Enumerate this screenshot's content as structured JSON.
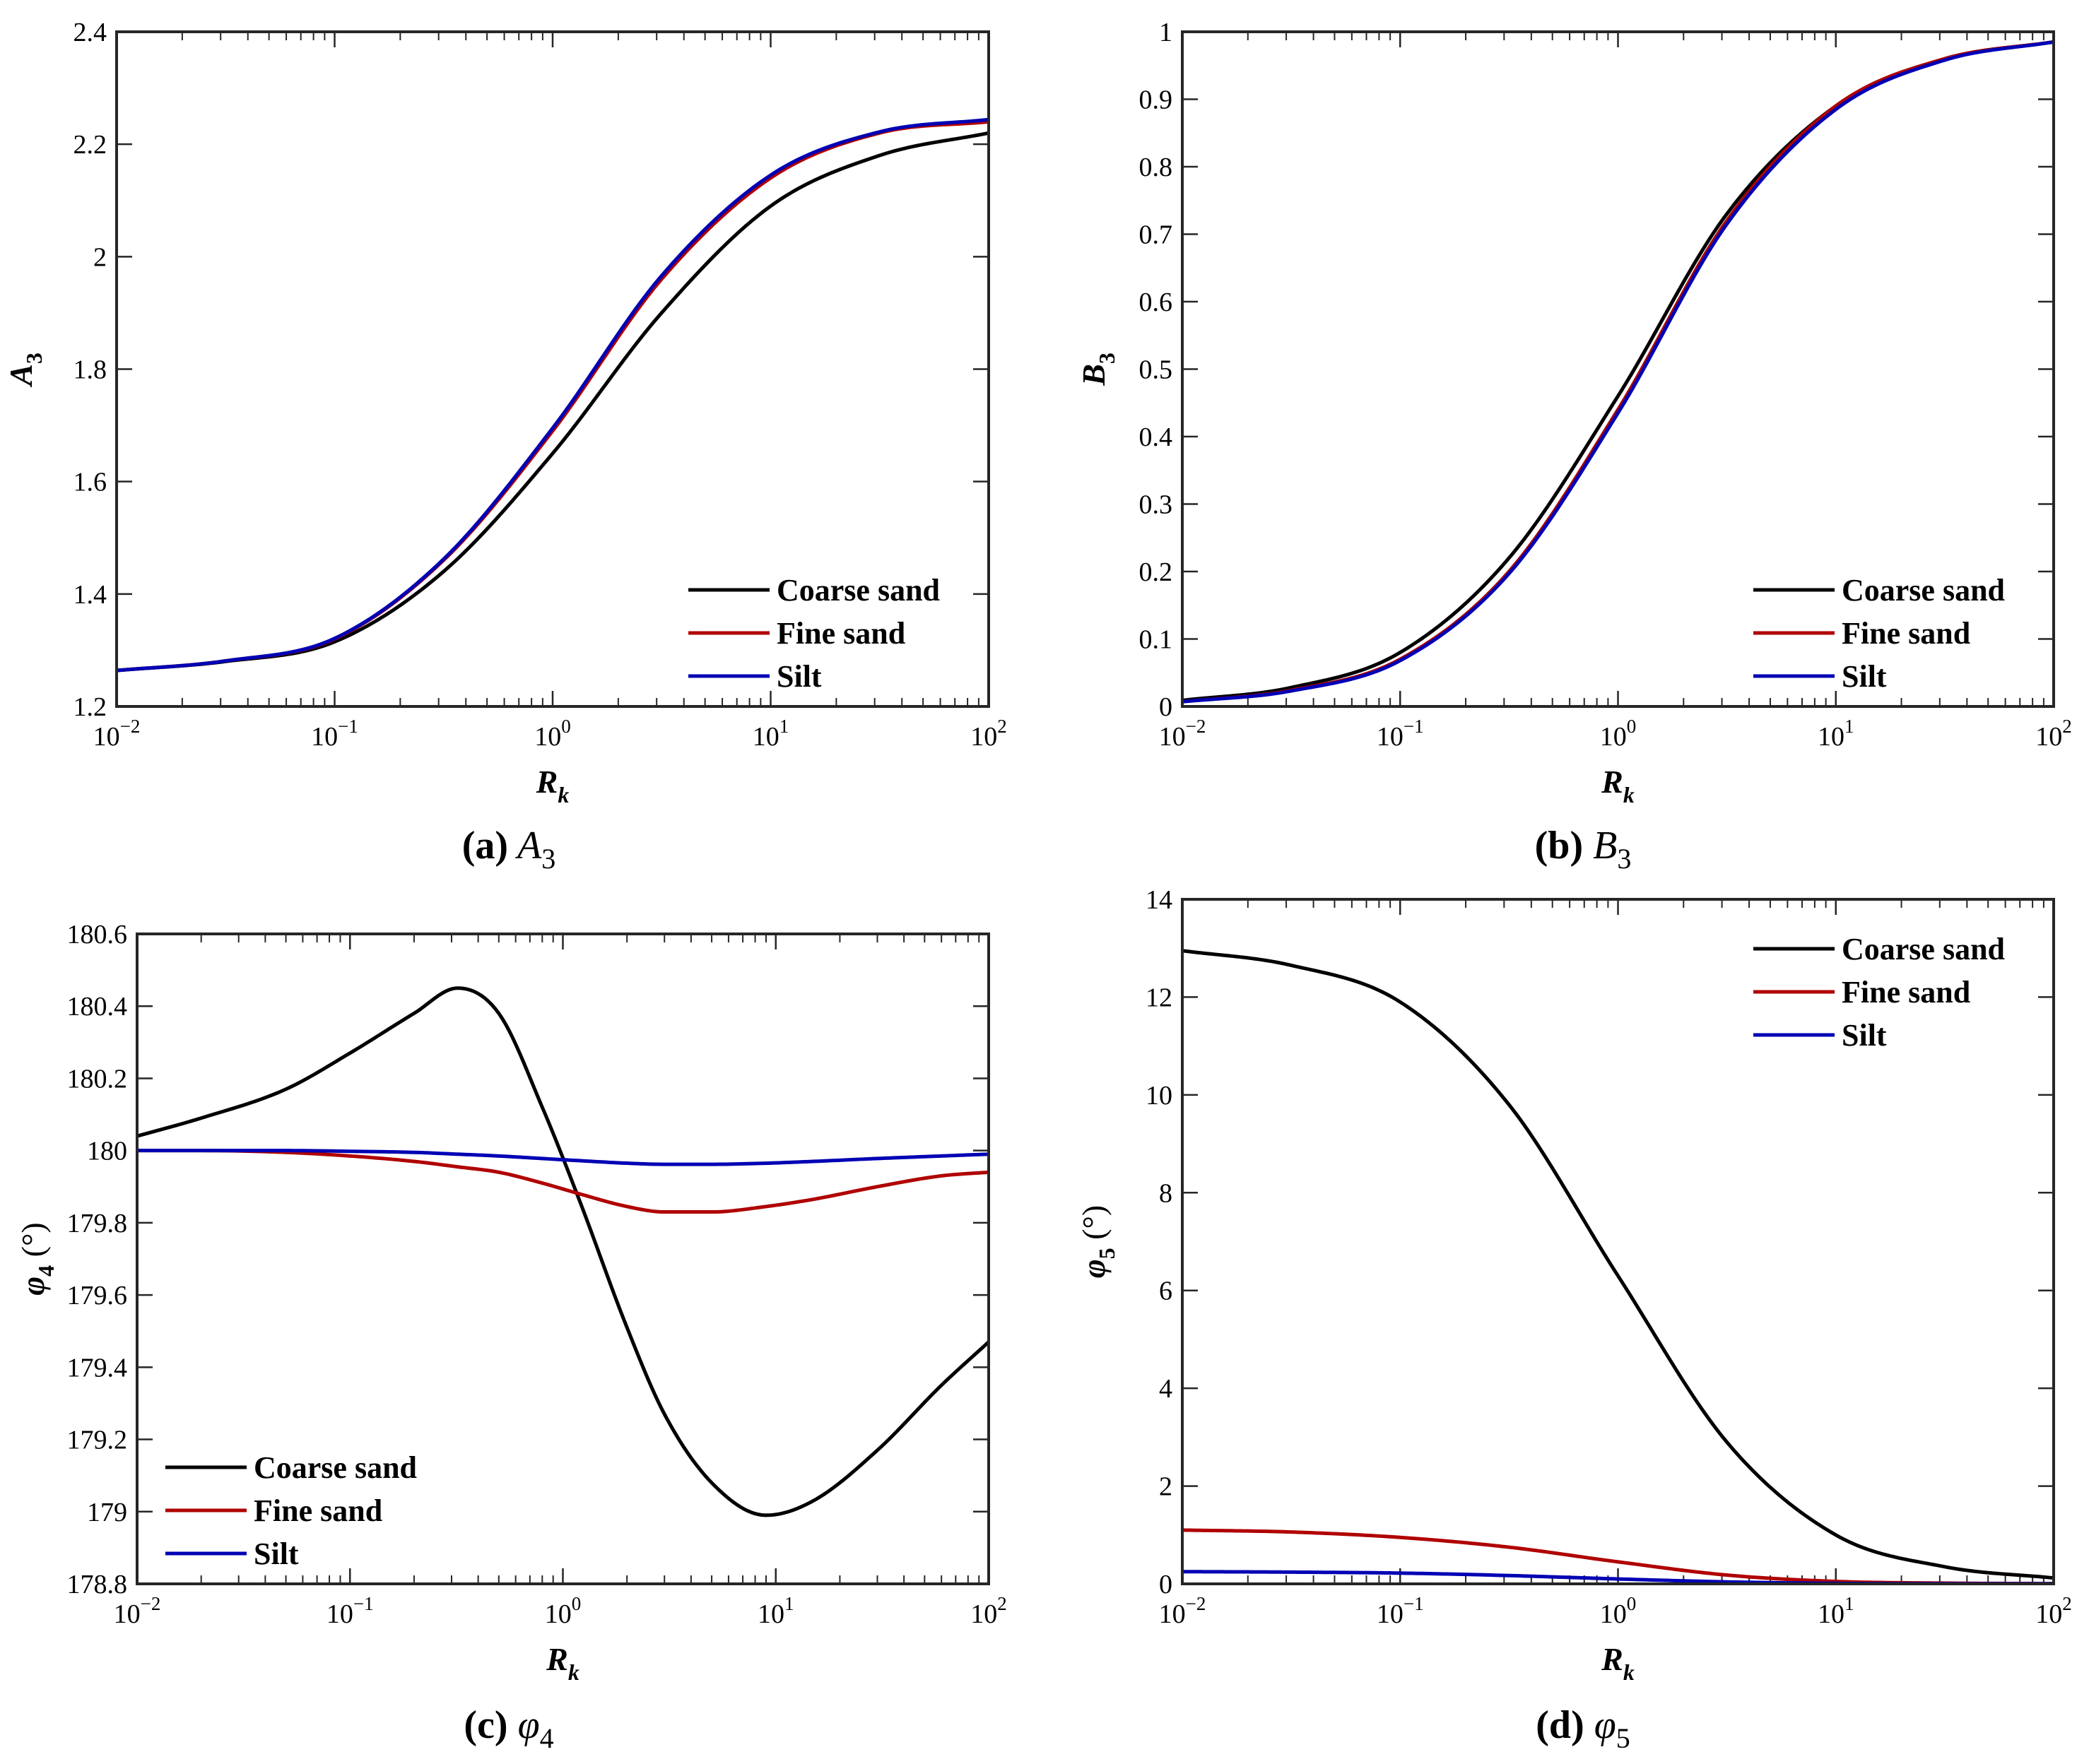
{
  "figure": {
    "colors": {
      "coarse": "#000000",
      "fine": "#b00000",
      "silt": "#0000b4",
      "axis": "#262626"
    }
  },
  "chart_data": [
    {
      "id": "a",
      "type": "line",
      "caption": {
        "letter": "(a)",
        "symbol": "A",
        "sub": "3"
      },
      "ylabel": {
        "symbol": "A",
        "sub": "3",
        "unit": ""
      },
      "xlabel": {
        "symbol": "R",
        "sub": "k"
      },
      "xscale": "log",
      "xlim": [
        0.01,
        100
      ],
      "ylim": [
        1.2,
        2.4
      ],
      "xticks": [
        {
          "base": "10",
          "exp": "−2",
          "v": 0.01
        },
        {
          "base": "10",
          "exp": "−1",
          "v": 0.1
        },
        {
          "base": "10",
          "exp": "0",
          "v": 1
        },
        {
          "base": "10",
          "exp": "1",
          "v": 10
        },
        {
          "base": "10",
          "exp": "2",
          "v": 100
        }
      ],
      "yticks": [
        {
          "v": 1.2,
          "label": "1.2"
        },
        {
          "v": 1.4,
          "label": "1.4"
        },
        {
          "v": 1.6,
          "label": "1.6"
        },
        {
          "v": 1.8,
          "label": "1.8"
        },
        {
          "v": 2.0,
          "label": "2"
        },
        {
          "v": 2.2,
          "label": "2.2"
        },
        {
          "v": 2.4,
          "label": "2.4"
        }
      ],
      "legend": {
        "position": "bottom-right"
      },
      "x": [
        0.01,
        0.0316,
        0.1,
        0.316,
        1,
        3.16,
        10,
        31.6,
        100
      ],
      "series": [
        {
          "name": "Coarse sand",
          "key": "coarse",
          "values": [
            1.264,
            1.28,
            1.315,
            1.44,
            1.65,
            1.9,
            2.09,
            2.18,
            2.22
          ]
        },
        {
          "name": "Fine sand",
          "key": "fine",
          "values": [
            1.264,
            1.281,
            1.32,
            1.46,
            1.69,
            1.96,
            2.14,
            2.22,
            2.24
          ]
        },
        {
          "name": "Silt",
          "key": "silt",
          "values": [
            1.264,
            1.281,
            1.321,
            1.462,
            1.695,
            1.966,
            2.145,
            2.222,
            2.244
          ]
        }
      ]
    },
    {
      "id": "b",
      "type": "line",
      "caption": {
        "letter": "(b)",
        "symbol": "B",
        "sub": "3"
      },
      "ylabel": {
        "symbol": "B",
        "sub": "3",
        "unit": ""
      },
      "xlabel": {
        "symbol": "R",
        "sub": "k"
      },
      "xscale": "log",
      "xlim": [
        0.01,
        100
      ],
      "ylim": [
        0,
        1
      ],
      "xticks": [
        {
          "base": "10",
          "exp": "−2",
          "v": 0.01
        },
        {
          "base": "10",
          "exp": "−1",
          "v": 0.1
        },
        {
          "base": "10",
          "exp": "0",
          "v": 1
        },
        {
          "base": "10",
          "exp": "1",
          "v": 10
        },
        {
          "base": "10",
          "exp": "2",
          "v": 100
        }
      ],
      "yticks": [
        {
          "v": 0,
          "label": "0"
        },
        {
          "v": 0.1,
          "label": "0.1"
        },
        {
          "v": 0.2,
          "label": "0.2"
        },
        {
          "v": 0.3,
          "label": "0.3"
        },
        {
          "v": 0.4,
          "label": "0.4"
        },
        {
          "v": 0.5,
          "label": "0.5"
        },
        {
          "v": 0.6,
          "label": "0.6"
        },
        {
          "v": 0.7,
          "label": "0.7"
        },
        {
          "v": 0.8,
          "label": "0.8"
        },
        {
          "v": 0.9,
          "label": "0.9"
        },
        {
          "v": 1,
          "label": "1"
        }
      ],
      "legend": {
        "position": "bottom-right"
      },
      "x": [
        0.01,
        0.0316,
        0.1,
        0.316,
        1,
        3.16,
        10,
        31.6,
        100
      ],
      "series": [
        {
          "name": "Coarse sand",
          "key": "coarse",
          "values": [
            0.009,
            0.028,
            0.08,
            0.22,
            0.46,
            0.73,
            0.89,
            0.96,
            0.985
          ]
        },
        {
          "name": "Fine sand",
          "key": "fine",
          "values": [
            0.007,
            0.024,
            0.07,
            0.2,
            0.44,
            0.72,
            0.89,
            0.96,
            0.985
          ]
        },
        {
          "name": "Silt",
          "key": "silt",
          "values": [
            0.007,
            0.023,
            0.068,
            0.197,
            0.435,
            0.715,
            0.885,
            0.958,
            0.985
          ]
        }
      ]
    },
    {
      "id": "c",
      "type": "line",
      "caption": {
        "letter": "(c)",
        "symbol": "φ",
        "sub": "4"
      },
      "ylabel": {
        "symbol": "φ",
        "sub": "4",
        "unit": " (°)"
      },
      "xlabel": {
        "symbol": "R",
        "sub": "k"
      },
      "xscale": "log",
      "xlim": [
        0.01,
        100
      ],
      "ylim": [
        178.8,
        180.6
      ],
      "xticks": [
        {
          "base": "10",
          "exp": "−2",
          "v": 0.01
        },
        {
          "base": "10",
          "exp": "−1",
          "v": 0.1
        },
        {
          "base": "10",
          "exp": "0",
          "v": 1
        },
        {
          "base": "10",
          "exp": "1",
          "v": 10
        },
        {
          "base": "10",
          "exp": "2",
          "v": 100
        }
      ],
      "yticks": [
        {
          "v": 178.8,
          "label": "178.8"
        },
        {
          "v": 179.0,
          "label": "179"
        },
        {
          "v": 179.2,
          "label": "179.2"
        },
        {
          "v": 179.4,
          "label": "179.4"
        },
        {
          "v": 179.6,
          "label": "179.6"
        },
        {
          "v": 179.8,
          "label": "179.8"
        },
        {
          "v": 180.0,
          "label": "180"
        },
        {
          "v": 180.2,
          "label": "180.2"
        },
        {
          "v": 180.4,
          "label": "180.4"
        },
        {
          "v": 180.6,
          "label": "180.6"
        }
      ],
      "legend": {
        "position": "bottom-left"
      },
      "x": [
        0.01,
        0.02,
        0.05,
        0.1,
        0.2,
        0.32,
        0.5,
        0.8,
        1.2,
        2,
        3,
        5,
        9,
        15,
        30,
        60,
        100
      ],
      "series": [
        {
          "name": "Coarse sand",
          "key": "coarse",
          "values": [
            180.04,
            180.09,
            180.17,
            180.27,
            180.38,
            180.45,
            180.38,
            180.12,
            179.86,
            179.51,
            179.27,
            179.08,
            178.99,
            179.03,
            179.17,
            179.35,
            179.47
          ]
        },
        {
          "name": "Fine sand",
          "key": "fine",
          "values": [
            180.0,
            180.0,
            179.995,
            179.985,
            179.97,
            179.955,
            179.94,
            179.91,
            179.88,
            179.845,
            179.83,
            179.83,
            179.845,
            179.865,
            179.9,
            179.93,
            179.94
          ]
        },
        {
          "name": "Silt",
          "key": "silt",
          "values": [
            180.0,
            180.0,
            180.0,
            179.998,
            179.995,
            179.99,
            179.985,
            179.978,
            179.972,
            179.965,
            179.962,
            179.962,
            179.965,
            179.97,
            179.978,
            179.985,
            179.99
          ]
        }
      ]
    },
    {
      "id": "d",
      "type": "line",
      "caption": {
        "letter": "(d)",
        "symbol": "φ",
        "sub": "5"
      },
      "ylabel": {
        "symbol": "φ",
        "sub": "5",
        "unit": " (°)"
      },
      "xlabel": {
        "symbol": "R",
        "sub": "k"
      },
      "xscale": "log",
      "xlim": [
        0.01,
        100
      ],
      "ylim": [
        0,
        14
      ],
      "xticks": [
        {
          "base": "10",
          "exp": "−2",
          "v": 0.01
        },
        {
          "base": "10",
          "exp": "−1",
          "v": 0.1
        },
        {
          "base": "10",
          "exp": "0",
          "v": 1
        },
        {
          "base": "10",
          "exp": "1",
          "v": 10
        },
        {
          "base": "10",
          "exp": "2",
          "v": 100
        }
      ],
      "yticks": [
        {
          "v": 0,
          "label": "0"
        },
        {
          "v": 2,
          "label": "2"
        },
        {
          "v": 4,
          "label": "4"
        },
        {
          "v": 6,
          "label": "6"
        },
        {
          "v": 8,
          "label": "8"
        },
        {
          "v": 10,
          "label": "10"
        },
        {
          "v": 12,
          "label": "12"
        },
        {
          "v": 14,
          "label": "14"
        }
      ],
      "legend": {
        "position": "top-right"
      },
      "x": [
        0.01,
        0.0316,
        0.1,
        0.316,
        1,
        3.16,
        10,
        31.6,
        100
      ],
      "series": [
        {
          "name": "Coarse sand",
          "key": "coarse",
          "values": [
            12.95,
            12.65,
            11.9,
            9.8,
            6.3,
            2.9,
            1.0,
            0.35,
            0.12
          ]
        },
        {
          "name": "Fine sand",
          "key": "fine",
          "values": [
            1.1,
            1.06,
            0.95,
            0.75,
            0.45,
            0.18,
            0.05,
            0.015,
            0.005
          ]
        },
        {
          "name": "Silt",
          "key": "silt",
          "values": [
            0.25,
            0.24,
            0.22,
            0.17,
            0.1,
            0.04,
            0.01,
            0.003,
            0.001
          ]
        }
      ]
    }
  ]
}
